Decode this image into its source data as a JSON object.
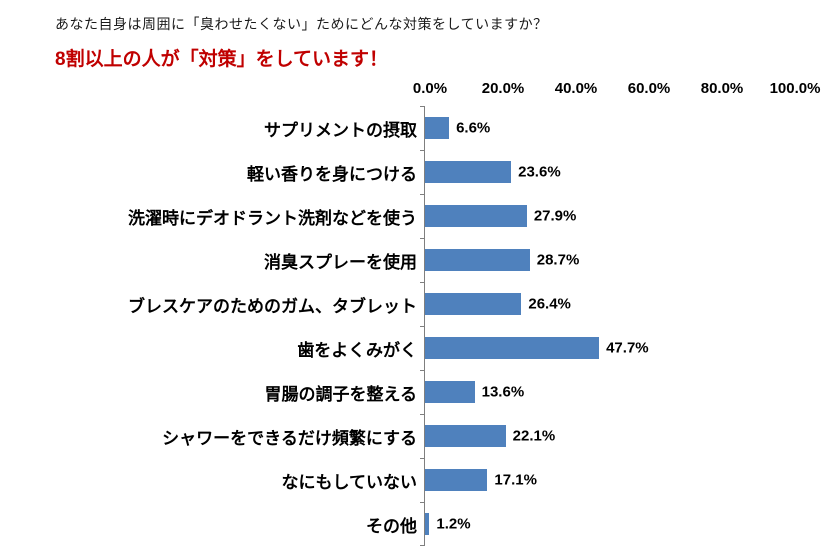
{
  "header": {
    "question": "あなた自身は周囲に「臭わせたくない」ためにどんな対策をしていますか？",
    "headline": "8割以上の人が「対策」をしています！",
    "headline_color": "#C00000"
  },
  "chart_data": {
    "type": "bar",
    "orientation": "horizontal",
    "categories": [
      "サプリメントの摂取",
      "軽い香りを身につける",
      "洗濯時にデオドラント洗剤などを使う",
      "消臭スプレーを使用",
      "ブレスケアのためのガム、タブレット",
      "歯をよくみがく",
      "胃腸の調子を整える",
      "シャワーをできるだけ頻繁にする",
      "なにもしていない",
      "その他"
    ],
    "values": [
      6.6,
      23.6,
      27.9,
      28.7,
      26.4,
      47.7,
      13.6,
      22.1,
      17.1,
      1.2
    ],
    "value_labels": [
      "6.6%",
      "23.6%",
      "27.9%",
      "28.7%",
      "26.4%",
      "47.7%",
      "13.6%",
      "22.1%",
      "17.1%",
      "1.2%"
    ],
    "x_tick_labels": [
      "0.0%",
      "20.0%",
      "40.0%",
      "60.0%",
      "80.0%",
      "100.0%"
    ],
    "xlim": [
      0,
      100
    ],
    "bar_color": "#4F81BD",
    "grid": false,
    "legend": false,
    "title": "",
    "xlabel": "",
    "ylabel": ""
  }
}
